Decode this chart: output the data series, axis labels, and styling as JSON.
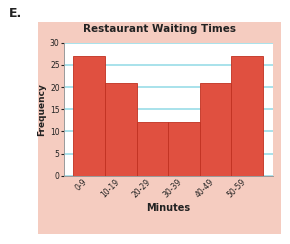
{
  "title": "Restaurant Waiting Times",
  "xlabel": "Minutes",
  "ylabel": "Frequency",
  "categories": [
    "0-9",
    "10-19",
    "20-29",
    "30-39",
    "40-49",
    "50-59"
  ],
  "values": [
    27,
    21,
    12,
    12,
    21,
    27
  ],
  "bar_color": "#e05040",
  "bar_edge_color": "#c03020",
  "ylim": [
    0,
    30
  ],
  "yticks": [
    0,
    5,
    10,
    15,
    20,
    25,
    30
  ],
  "grid_color": "#99dde8",
  "panel_bg_color": "#f5ccc0",
  "plot_bg_color": "#ffffff",
  "title_bg_color": "#e05545",
  "title_text_color": "#222222",
  "label_color": "#222222",
  "tick_color": "#222222",
  "label_E": "E.",
  "fig_bg_color": "#ffffff"
}
